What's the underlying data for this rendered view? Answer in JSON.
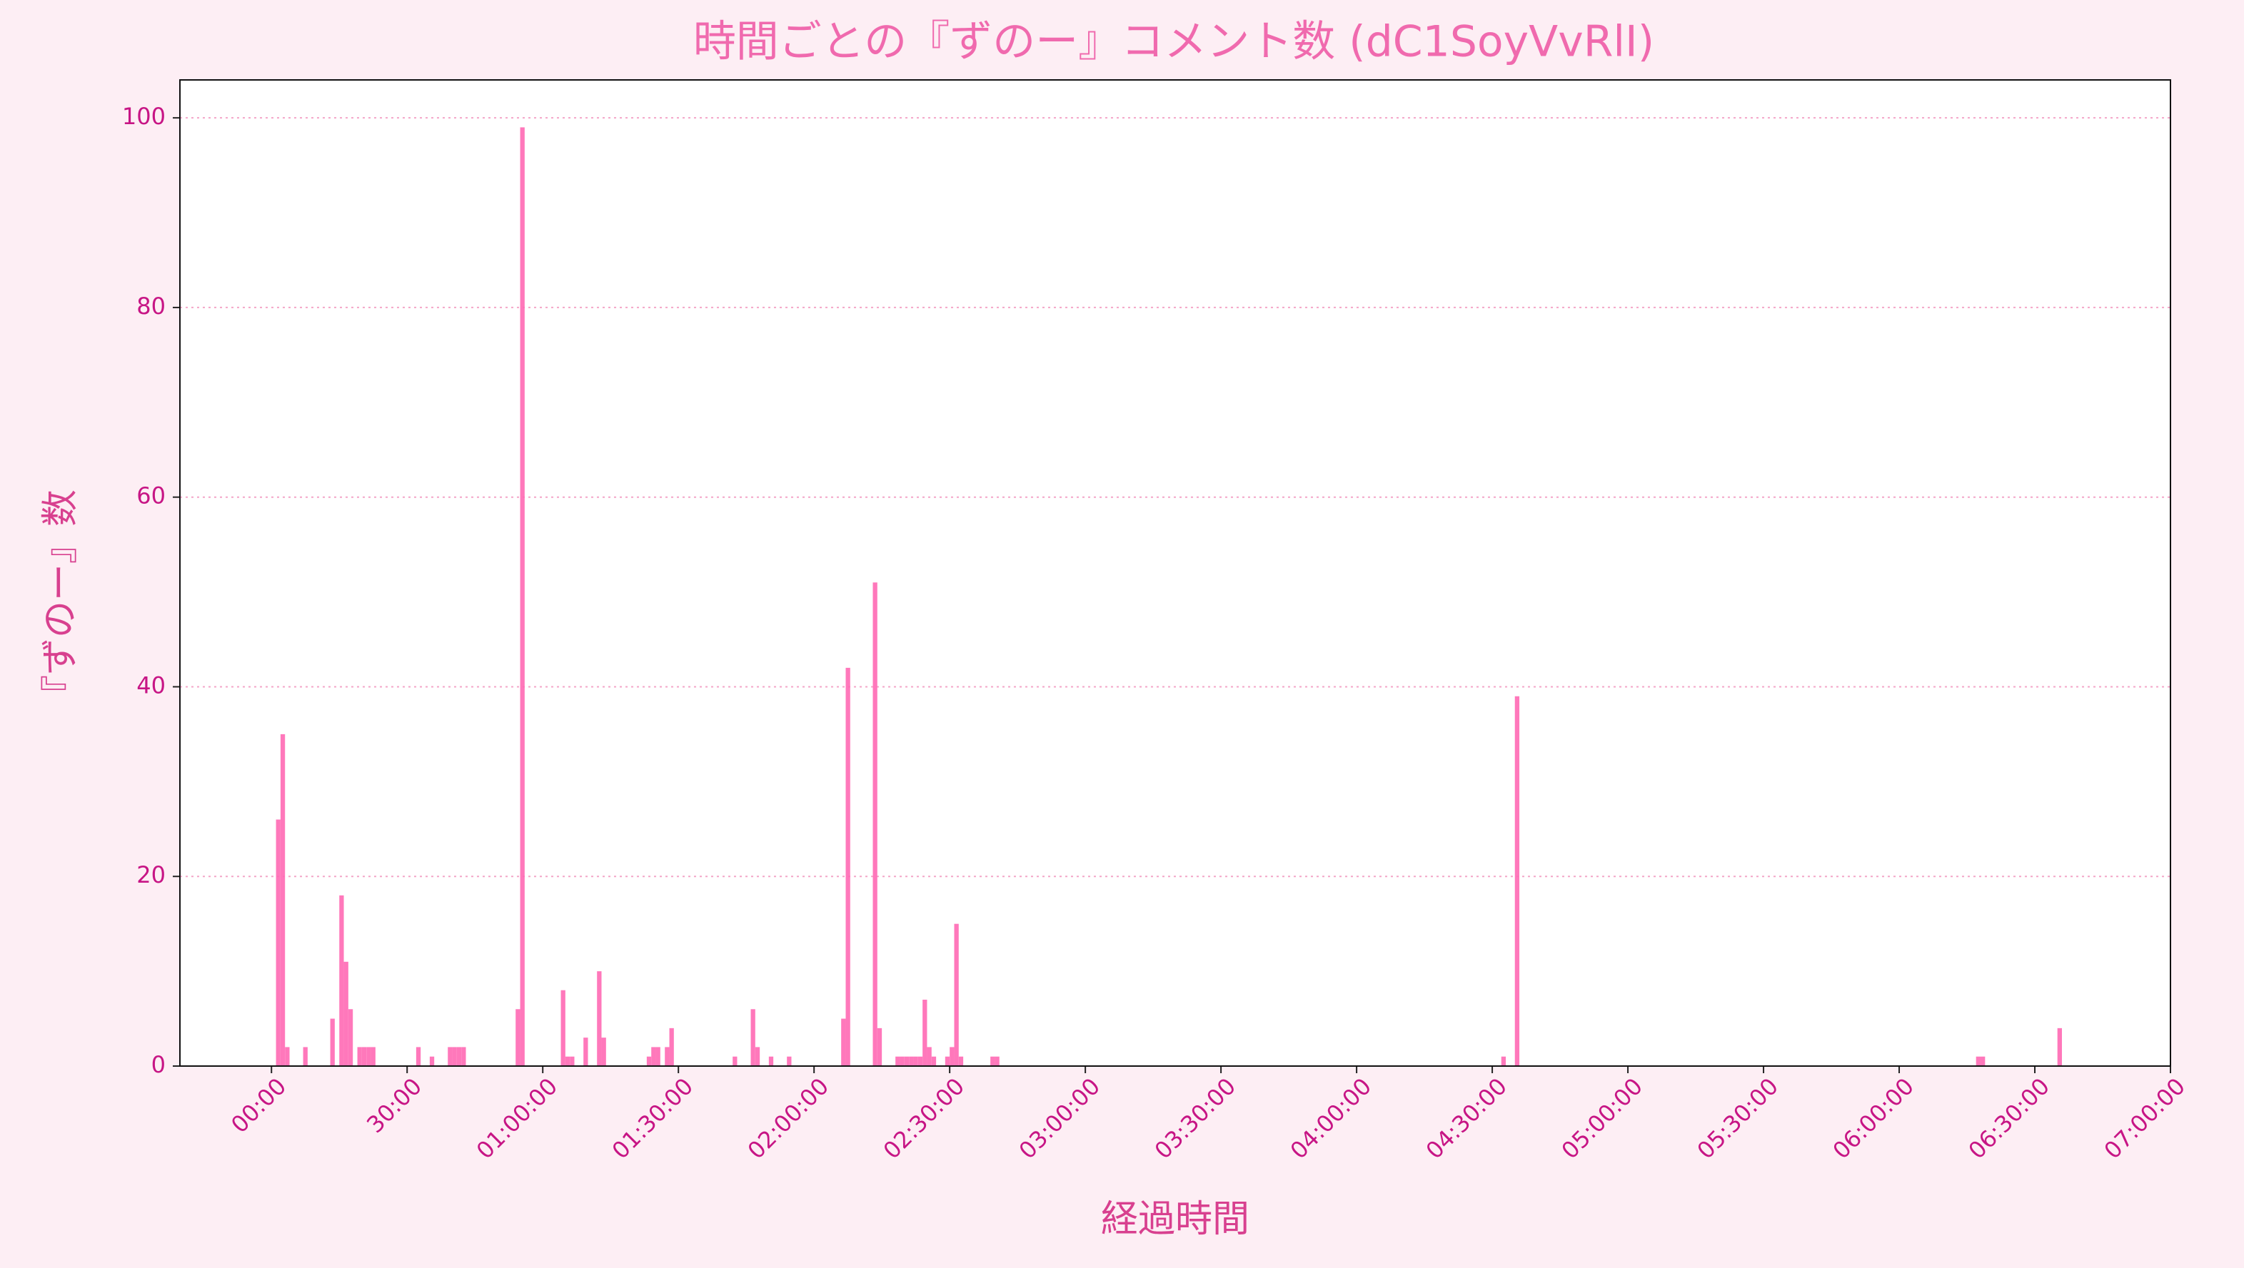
{
  "chart_data": {
    "type": "bar",
    "title": "時間ごとの『ずのー』コメント数 (dC1SoyVvRlI)",
    "x_label": "経過時間",
    "y_label": "『ずのー』数",
    "color": "#ff69b4",
    "x": [
      60,
      120,
      180,
      420,
      780,
      900,
      960,
      1020,
      1140,
      1200,
      1260,
      1320,
      1920,
      2100,
      2340,
      2400,
      2460,
      2520,
      3240,
      3300,
      3840,
      3900,
      3960,
      4140,
      4320,
      4380,
      4980,
      5040,
      5100,
      5220,
      5280,
      6120,
      6360,
      6420,
      6600,
      6840,
      7560,
      7620,
      7980,
      8040,
      8280,
      8340,
      8400,
      8460,
      8520,
      8580,
      8640,
      8700,
      8760,
      8940,
      9000,
      9060,
      9120,
      9540,
      9600,
      16320,
      16500,
      22620,
      22680,
      23700
    ],
    "values": [
      26,
      35,
      2,
      2,
      5,
      18,
      11,
      6,
      2,
      2,
      2,
      2,
      2,
      1,
      2,
      2,
      2,
      2,
      6,
      99,
      8,
      1,
      1,
      3,
      10,
      3,
      1,
      2,
      2,
      2,
      4,
      1,
      6,
      2,
      1,
      1,
      5,
      42,
      51,
      4,
      1,
      1,
      1,
      1,
      1,
      1,
      7,
      2,
      1,
      1,
      2,
      15,
      1,
      1,
      1,
      1,
      39,
      1,
      1,
      4
    ],
    "xlim": [
      -1215,
      25200
    ],
    "ylim": [
      0,
      104
    ],
    "yticks": [
      0,
      20,
      40,
      60,
      80,
      100
    ],
    "xticks": [
      {
        "value": 0,
        "label": "00:00"
      },
      {
        "value": 1800,
        "label": "30:00"
      },
      {
        "value": 3600,
        "label": "01:00:00"
      },
      {
        "value": 5400,
        "label": "01:30:00"
      },
      {
        "value": 7200,
        "label": "02:00:00"
      },
      {
        "value": 9000,
        "label": "02:30:00"
      },
      {
        "value": 10800,
        "label": "03:00:00"
      },
      {
        "value": 12600,
        "label": "03:30:00"
      },
      {
        "value": 14400,
        "label": "04:00:00"
      },
      {
        "value": 16200,
        "label": "04:30:00"
      },
      {
        "value": 18000,
        "label": "05:00:00"
      },
      {
        "value": 19800,
        "label": "05:30:00"
      },
      {
        "value": 21600,
        "label": "06:00:00"
      },
      {
        "value": 23400,
        "label": "06:30:00"
      },
      {
        "value": 25200,
        "label": "07:00:00"
      }
    ],
    "grid": true
  }
}
